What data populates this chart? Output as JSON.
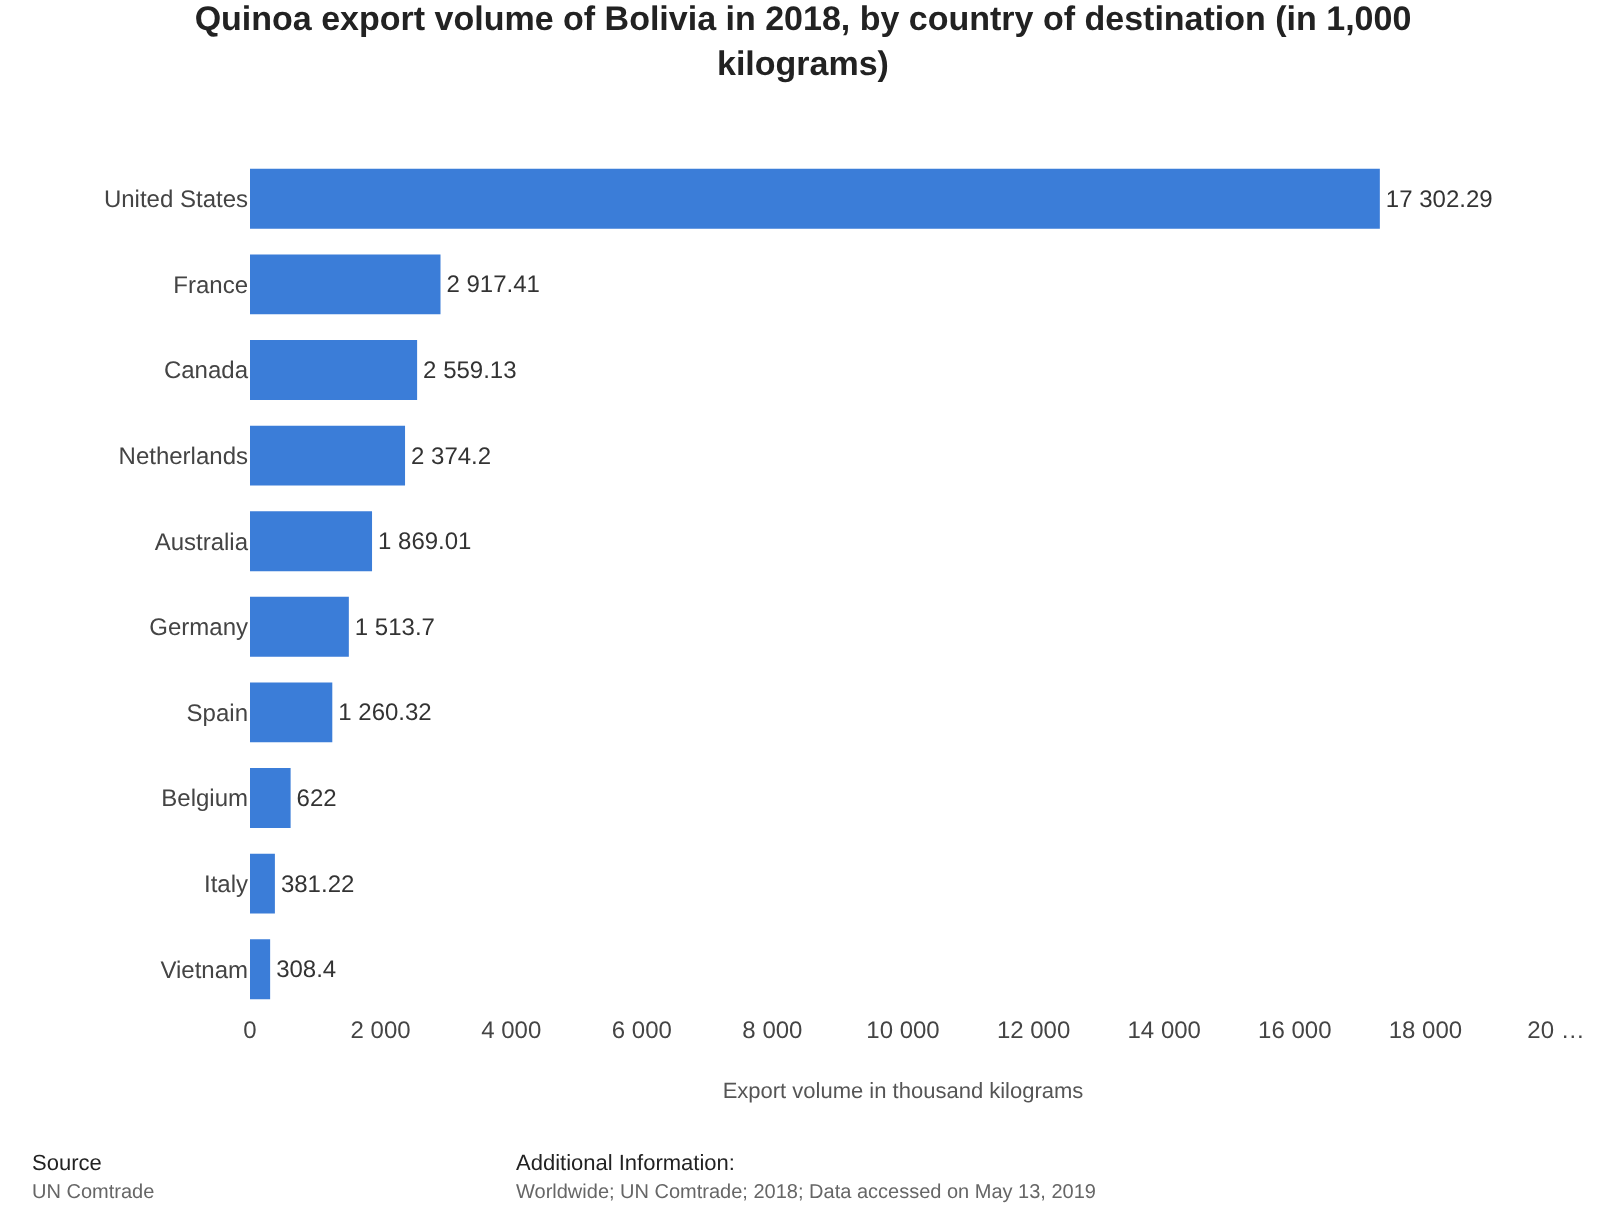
{
  "chart_data": {
    "type": "bar",
    "orientation": "horizontal",
    "title": "Quinoa export volume of Bolivia in 2018, by country of destination (in 1,000 kilograms)",
    "xlabel": "Export volume in thousand kilograms",
    "categories": [
      "United States",
      "France",
      "Canada",
      "Netherlands",
      "Australia",
      "Germany",
      "Spain",
      "Belgium",
      "Italy",
      "Vietnam"
    ],
    "values": [
      17302.29,
      2917.41,
      2559.13,
      2374.2,
      1869.01,
      1513.7,
      1260.32,
      622,
      381.22,
      308.4
    ],
    "value_labels": [
      "17 302.29",
      "2 917.41",
      "2 559.13",
      "2 374.2",
      "1 869.01",
      "1 513.7",
      "1 260.32",
      "622",
      "381.22",
      "308.4"
    ],
    "color": "#3b7dd8",
    "xlim": [
      0,
      20000
    ],
    "xticks": [
      {
        "value": 0,
        "label": "0"
      },
      {
        "value": 2000,
        "label": "2 000"
      },
      {
        "value": 4000,
        "label": "4 000"
      },
      {
        "value": 6000,
        "label": "6 000"
      },
      {
        "value": 8000,
        "label": "8 000"
      },
      {
        "value": 10000,
        "label": "10 000"
      },
      {
        "value": 12000,
        "label": "12 000"
      },
      {
        "value": 14000,
        "label": "14 000"
      },
      {
        "value": 16000,
        "label": "16 000"
      },
      {
        "value": 18000,
        "label": "18 000"
      },
      {
        "value": 20000,
        "label": "20 …"
      }
    ],
    "grid": false,
    "annotations": [
      "Source",
      "UN Comtrade",
      "Additional Information:",
      "Worldwide; UN Comtrade; 2018; Data accessed on May 13, 2019"
    ]
  }
}
